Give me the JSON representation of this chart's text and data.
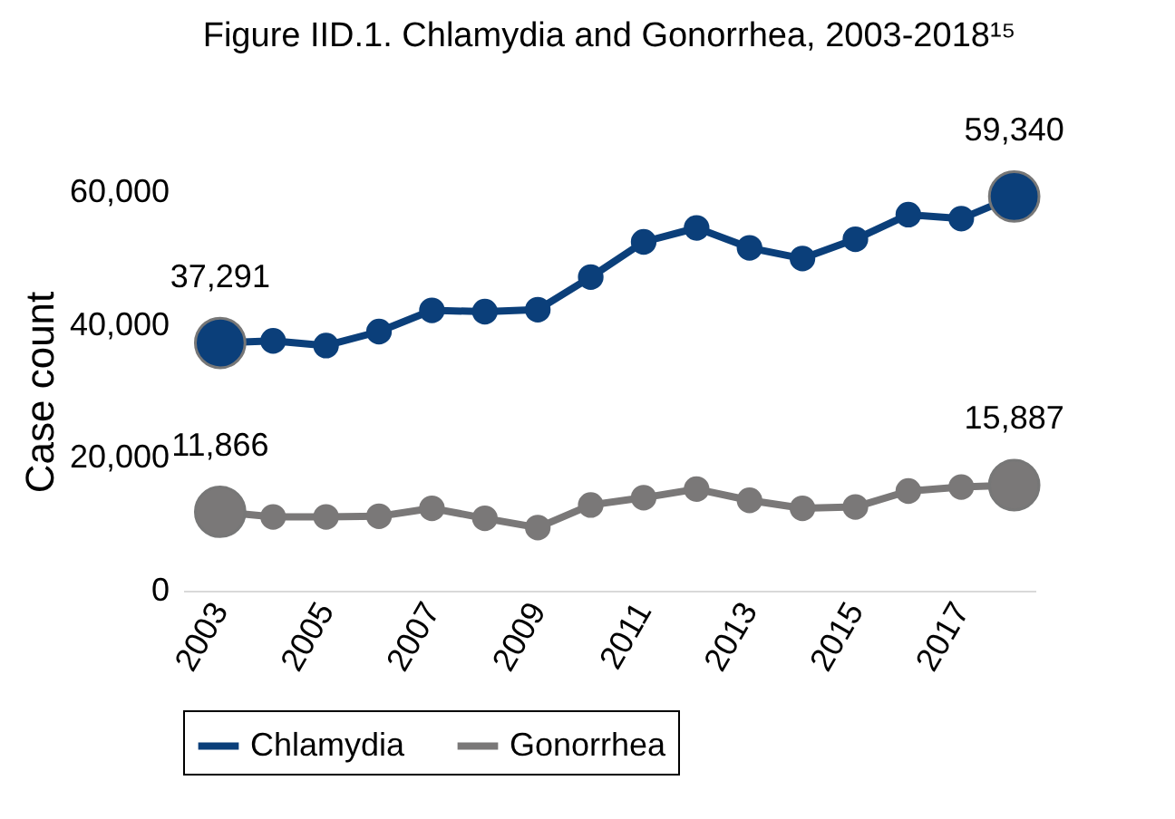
{
  "chart_data": {
    "type": "line",
    "title": "Figure IID.1. Chlamydia and Gonorrhea, 2003-2018¹⁵",
    "ylabel": "Case count",
    "x": [
      2003,
      2004,
      2005,
      2006,
      2007,
      2008,
      2009,
      2010,
      2011,
      2012,
      2013,
      2014,
      2015,
      2016,
      2017,
      2018
    ],
    "xlim": [
      2002.3,
      2018.4
    ],
    "xticks": [
      2003,
      2005,
      2007,
      2009,
      2011,
      2013,
      2015,
      2017
    ],
    "ylim": [
      0,
      60000
    ],
    "yticks": [
      {
        "value": 0,
        "label": "0"
      },
      {
        "value": 20000,
        "label": "20,000"
      },
      {
        "value": 40000,
        "label": "40,000"
      },
      {
        "value": 60000,
        "label": "60,000"
      }
    ],
    "series": [
      {
        "name": "Chlamydia",
        "color": "#0b3f7a",
        "values": [
          37291,
          37600,
          36900,
          39000,
          42200,
          42000,
          42300,
          47200,
          52500,
          54600,
          51600,
          50000,
          52900,
          56600,
          56000,
          59340
        ],
        "value_labels": [
          "37,291",
          null,
          null,
          null,
          null,
          null,
          null,
          null,
          null,
          null,
          null,
          null,
          null,
          null,
          null,
          "59,340"
        ]
      },
      {
        "name": "Gonorrhea",
        "color": "#7a7878",
        "values": [
          11866,
          11100,
          11100,
          11200,
          12400,
          10900,
          9500,
          12900,
          14000,
          15300,
          13600,
          12400,
          12600,
          15000,
          15600,
          15887
        ],
        "value_labels": [
          "11,866",
          null,
          null,
          null,
          null,
          null,
          null,
          null,
          null,
          null,
          null,
          null,
          null,
          null,
          null,
          "15,887"
        ]
      }
    ],
    "marker": "circle",
    "grid": false,
    "legend": "bottom"
  }
}
